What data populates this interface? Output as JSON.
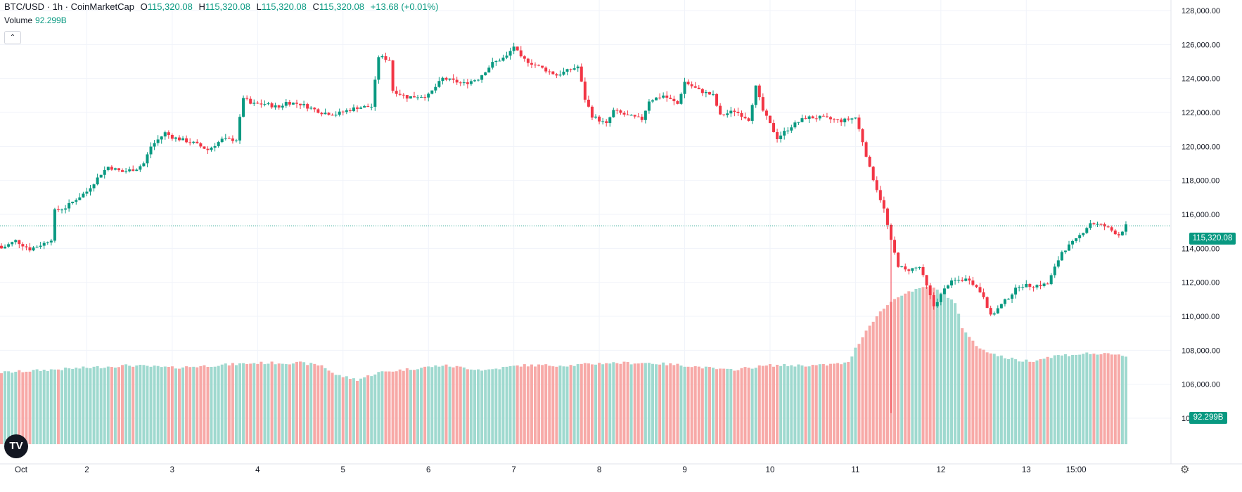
{
  "header": {
    "symbol": "BTC/USD · 1h · CoinMarketCap",
    "open_label": "O",
    "open": "115,320.08",
    "high_label": "H",
    "high": "115,320.08",
    "low_label": "L",
    "low": "115,320.08",
    "close_label": "C",
    "close": "115,320.08",
    "change": "+13.68 (+0.01%)"
  },
  "volume_header": {
    "label": "Volume",
    "value": "92.299B"
  },
  "collapse_icon": "chevron-up-icon",
  "price_badge": "115,320.08",
  "volume_badge": "92.299B",
  "logo_text": "TV",
  "settings_icon": "gear-icon",
  "colors": {
    "up": "#089981",
    "down": "#f23645",
    "vol_up": "#9fd9cf",
    "vol_down": "#f7a9a7"
  },
  "chart_data": {
    "type": "candlestick",
    "y_ticks": [
      104000,
      106000,
      108000,
      110000,
      112000,
      114000,
      116000,
      118000,
      120000,
      122000,
      124000,
      126000,
      128000
    ],
    "y_tick_labels": [
      "104,000.00",
      "106,000.00",
      "108,000.00",
      "110,000.00",
      "112,000.00",
      "114,000.00",
      "116,000.00",
      "118,000.00",
      "120,000.00",
      "122,000.00",
      "124,000.00",
      "126,000.00",
      "128,000.00"
    ],
    "ylim": [
      102800,
      128600
    ],
    "x_labels": [
      "Oct",
      "2",
      "3",
      "4",
      "5",
      "6",
      "7",
      "8",
      "9",
      "10",
      "11",
      "12",
      "13",
      "15:00"
    ],
    "x_label_index": [
      0,
      24,
      48,
      72,
      96,
      120,
      144,
      168,
      192,
      216,
      240,
      264,
      288,
      302
    ],
    "last_price": 115320.08,
    "close_path": [
      [
        0,
        114000
      ],
      [
        4,
        114450
      ],
      [
        8,
        113950
      ],
      [
        12,
        114300
      ],
      [
        14,
        114550
      ],
      [
        15,
        116200
      ],
      [
        18,
        116400
      ],
      [
        21,
        116900
      ],
      [
        24,
        117350
      ],
      [
        28,
        118400
      ],
      [
        30,
        118800
      ],
      [
        34,
        118500
      ],
      [
        38,
        118700
      ],
      [
        40,
        119000
      ],
      [
        42,
        120000
      ],
      [
        46,
        120800
      ],
      [
        48,
        120550
      ],
      [
        54,
        120200
      ],
      [
        58,
        119800
      ],
      [
        62,
        120400
      ],
      [
        66,
        120400
      ],
      [
        68,
        122900
      ],
      [
        70,
        122500
      ],
      [
        74,
        122500
      ],
      [
        78,
        122300
      ],
      [
        80,
        122600
      ],
      [
        84,
        122500
      ],
      [
        90,
        122000
      ],
      [
        94,
        121900
      ],
      [
        100,
        122300
      ],
      [
        104,
        122350
      ],
      [
        106,
        125300
      ],
      [
        109,
        125100
      ],
      [
        110,
        123300
      ],
      [
        114,
        122900
      ],
      [
        120,
        123000
      ],
      [
        124,
        124000
      ],
      [
        130,
        123700
      ],
      [
        134,
        124000
      ],
      [
        138,
        124900
      ],
      [
        142,
        125300
      ],
      [
        144,
        125900
      ],
      [
        146,
        125200
      ],
      [
        150,
        124800
      ],
      [
        156,
        124200
      ],
      [
        162,
        124700
      ],
      [
        164,
        122800
      ],
      [
        166,
        121800
      ],
      [
        170,
        121300
      ],
      [
        172,
        122100
      ],
      [
        176,
        121800
      ],
      [
        180,
        121600
      ],
      [
        182,
        122700
      ],
      [
        186,
        123000
      ],
      [
        190,
        122500
      ],
      [
        192,
        123800
      ],
      [
        196,
        123300
      ],
      [
        200,
        123000
      ],
      [
        202,
        121800
      ],
      [
        206,
        122100
      ],
      [
        210,
        121600
      ],
      [
        212,
        123500
      ],
      [
        214,
        122100
      ],
      [
        218,
        120500
      ],
      [
        222,
        121200
      ],
      [
        226,
        121700
      ],
      [
        230,
        121700
      ],
      [
        236,
        121500
      ],
      [
        240,
        121700
      ],
      [
        242,
        120300
      ],
      [
        244,
        118700
      ],
      [
        246,
        117500
      ],
      [
        248,
        116300
      ],
      [
        250,
        114400
      ],
      [
        252,
        113000
      ],
      [
        254,
        112700
      ],
      [
        258,
        112900
      ],
      [
        262,
        110600
      ],
      [
        266,
        111900
      ],
      [
        268,
        112100
      ],
      [
        272,
        112200
      ],
      [
        276,
        111200
      ],
      [
        278,
        110000
      ],
      [
        282,
        110900
      ],
      [
        286,
        111800
      ],
      [
        290,
        111800
      ],
      [
        294,
        111900
      ],
      [
        298,
        113800
      ],
      [
        302,
        114500
      ],
      [
        306,
        115500
      ],
      [
        310,
        115300
      ],
      [
        314,
        114800
      ],
      [
        316,
        115320.08
      ]
    ],
    "volume_ylim": [
      0,
      100
    ],
    "volume_path": [
      [
        0,
        30
      ],
      [
        12,
        31
      ],
      [
        24,
        32
      ],
      [
        36,
        33
      ],
      [
        48,
        32
      ],
      [
        60,
        33
      ],
      [
        72,
        34
      ],
      [
        84,
        34
      ],
      [
        90,
        33
      ],
      [
        94,
        29
      ],
      [
        100,
        27
      ],
      [
        106,
        30
      ],
      [
        112,
        31
      ],
      [
        124,
        33
      ],
      [
        136,
        31
      ],
      [
        146,
        33
      ],
      [
        160,
        33
      ],
      [
        170,
        34
      ],
      [
        182,
        34
      ],
      [
        192,
        33
      ],
      [
        204,
        31
      ],
      [
        216,
        33
      ],
      [
        230,
        33
      ],
      [
        238,
        34
      ],
      [
        240,
        40
      ],
      [
        244,
        50
      ],
      [
        248,
        57
      ],
      [
        252,
        62
      ],
      [
        256,
        64
      ],
      [
        260,
        66
      ],
      [
        264,
        64
      ],
      [
        268,
        59
      ],
      [
        270,
        49
      ],
      [
        274,
        41
      ],
      [
        280,
        37
      ],
      [
        286,
        35
      ],
      [
        290,
        35
      ],
      [
        296,
        37
      ],
      [
        306,
        38
      ],
      [
        316,
        37
      ]
    ]
  }
}
